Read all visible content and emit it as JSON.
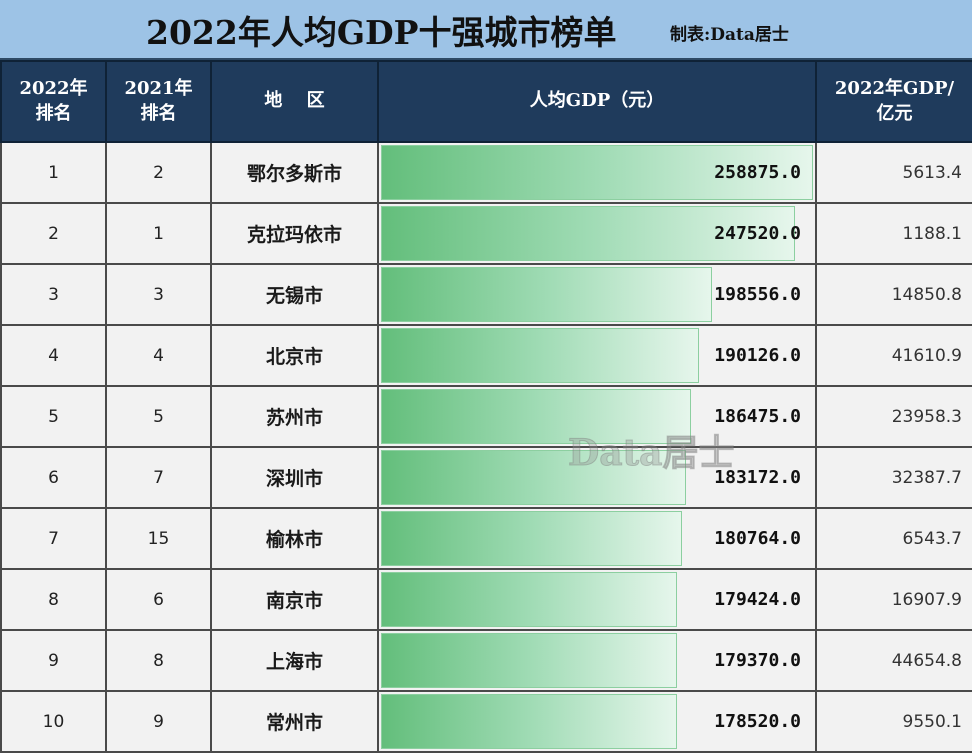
{
  "title": "2022年人均GDP十强城市榜单",
  "credit": "制表:Data居士",
  "watermark": "Data居士",
  "headers": {
    "rank2022": "2022年 排名",
    "rank2022_l1": "2022年",
    "rank2022_l2": "排名",
    "rank2021_l1": "2021年",
    "rank2021_l2": "排名",
    "region": "地　 区",
    "per_capita": "人均GDP（元）",
    "gdp_l1": "2022年GDP/",
    "gdp_l2": "亿元"
  },
  "rows": [
    {
      "rank2022": "1",
      "rank2021": "2",
      "region": "鄂尔多斯市",
      "per_capita": "258875.0",
      "gdp": "5613.4"
    },
    {
      "rank2022": "2",
      "rank2021": "1",
      "region": "克拉玛依市",
      "per_capita": "247520.0",
      "gdp": "1188.1"
    },
    {
      "rank2022": "3",
      "rank2021": "3",
      "region": "无锡市",
      "per_capita": "198556.0",
      "gdp": "14850.8"
    },
    {
      "rank2022": "4",
      "rank2021": "4",
      "region": "北京市",
      "per_capita": "190126.0",
      "gdp": "41610.9"
    },
    {
      "rank2022": "5",
      "rank2021": "5",
      "region": "苏州市",
      "per_capita": "186475.0",
      "gdp": "23958.3"
    },
    {
      "rank2022": "6",
      "rank2021": "7",
      "region": "深圳市",
      "per_capita": "183172.0",
      "gdp": "32387.7"
    },
    {
      "rank2022": "7",
      "rank2021": "15",
      "region": "榆林市",
      "per_capita": "180764.0",
      "gdp": "6543.7"
    },
    {
      "rank2022": "8",
      "rank2021": "6",
      "region": "南京市",
      "per_capita": "179424.0",
      "gdp": "16907.9"
    },
    {
      "rank2022": "9",
      "rank2021": "8",
      "region": "上海市",
      "per_capita": "179370.0",
      "gdp": "44654.8"
    },
    {
      "rank2022": "10",
      "rank2021": "9",
      "region": "常州市",
      "per_capita": "178520.0",
      "gdp": "9550.1"
    }
  ],
  "bar_widths_pct": [
    99,
    95,
    76,
    73,
    71,
    70,
    69,
    68,
    68,
    68
  ],
  "colors": {
    "title_bg": "#9dc3e6",
    "header_bg": "#1f3b5c",
    "bar_start": "#63be7b",
    "bar_end": "#e6f6ec",
    "cell_bg": "#f2f2f2"
  }
}
